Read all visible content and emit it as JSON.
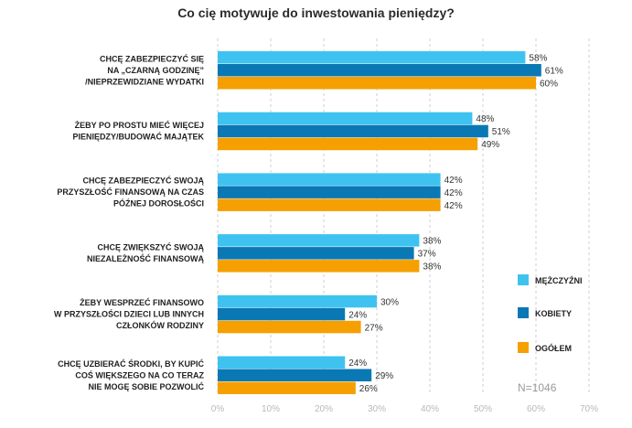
{
  "chart_data": {
    "type": "bar",
    "orientation": "horizontal",
    "title": "Co cię motywuje do inwestowania pieniędzy?",
    "categories": [
      [
        "CHCĘ ZABEZPIECZYĆ SIĘ",
        "NA „CZARNĄ GODZINĘ”",
        "/NIEPRZEWIDZIANE WYDATKI"
      ],
      [
        "ŻEBY PO PROSTU MIEĆ WIĘCEJ",
        "PIENIĘDZY/BUDOWAĆ MAJĄTEK"
      ],
      [
        "CHCĘ ZABEZPIECZYĆ SWOJĄ",
        "PRZYSZŁOŚĆ FINANSOWĄ NA CZAS",
        "PÓŹNEJ DOROSŁOŚCI"
      ],
      [
        "CHCĘ ZWIĘKSZYĆ SWOJĄ",
        "NIEZALEŻNOŚĆ FINANSOWĄ"
      ],
      [
        "ŻEBY WESPRZEĆ FINANSOWO",
        "W PRZYSZŁOŚCI DZIECI LUB INNYCH",
        "CZŁONKÓW RODZINY"
      ],
      [
        "CHCĘ UZBIERAĆ ŚRODKI, BY KUPIĆ",
        "COŚ WIĘKSZEGO NA CO TERAZ",
        "NIE MOGĘ SOBIE POZWOLIĆ"
      ]
    ],
    "series": [
      {
        "name": "MĘŻCZYŹNI",
        "color": "#3ec3f0",
        "values": [
          58,
          48,
          42,
          38,
          30,
          24
        ]
      },
      {
        "name": "KOBIETY",
        "color": "#0a78b4",
        "values": [
          61,
          51,
          42,
          37,
          24,
          29
        ]
      },
      {
        "name": "OGÓŁEM",
        "color": "#f5a000",
        "values": [
          60,
          49,
          42,
          38,
          27,
          26
        ]
      }
    ],
    "xlim": [
      0,
      70
    ],
    "xticks": [
      "0%",
      "10%",
      "20%",
      "30%",
      "40%",
      "50%",
      "60%",
      "70%"
    ],
    "value_suffix": "%",
    "grid": true,
    "legend_position": "right",
    "note": "N=1046"
  }
}
